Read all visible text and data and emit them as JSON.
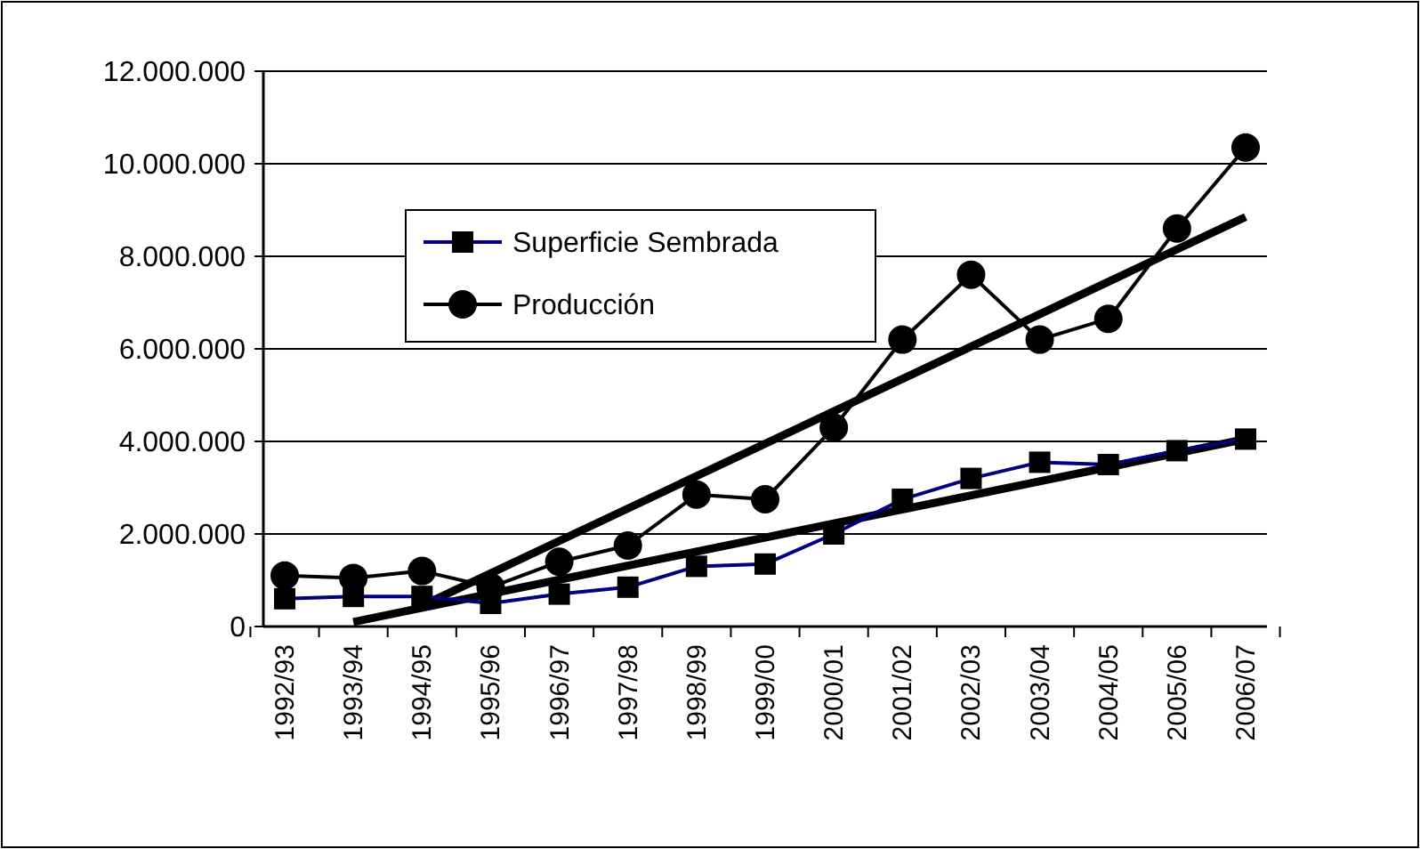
{
  "chart_data": {
    "type": "line",
    "categories": [
      "1992/93",
      "1993/94",
      "1994/95",
      "1995/96",
      "1996/97",
      "1997/98",
      "1998/99",
      "1999/00",
      "2000/01",
      "2001/02",
      "2002/03",
      "2003/04",
      "2004/05",
      "2005/06",
      "2006/07"
    ],
    "series": [
      {
        "name": "Superficie Sembrada",
        "color": "#000080",
        "marker": "square",
        "values": [
          600000,
          650000,
          650000,
          500000,
          700000,
          850000,
          1300000,
          1350000,
          2000000,
          2750000,
          3200000,
          3550000,
          3500000,
          3800000,
          4050000
        ]
      },
      {
        "name": "Producción",
        "color": "#000000",
        "marker": "circle",
        "values": [
          1100000,
          1050000,
          1200000,
          850000,
          1400000,
          1750000,
          2850000,
          2750000,
          4300000,
          6200000,
          7600000,
          6200000,
          6650000,
          8600000,
          10350000
        ]
      },
      {
        "type": "line",
        "color": "#000000",
        "x": [
          "1993/94",
          "2006/07"
        ],
        "values": [
          100000,
          4050000
        ]
      },
      {
        "type": "line",
        "color": "#000000",
        "x": [
          "1994/95",
          "2006/07"
        ],
        "values": [
          450000,
          8850000
        ]
      }
    ],
    "ylim": [
      0,
      12000000
    ],
    "yticks": [
      0,
      {
        "value": 2000000,
        "label": "2.000.000"
      },
      {
        "value": 4000000,
        "label": "4.000.000"
      },
      {
        "value": 6000000,
        "label": "6.000.000"
      },
      {
        "value": 8000000,
        "label": "8.000.000"
      },
      {
        "value": 10000000,
        "label": "10.000.000"
      },
      {
        "value": 12000000,
        "label": "12.000.000"
      }
    ],
    "grid": "y",
    "legend": "top left"
  }
}
